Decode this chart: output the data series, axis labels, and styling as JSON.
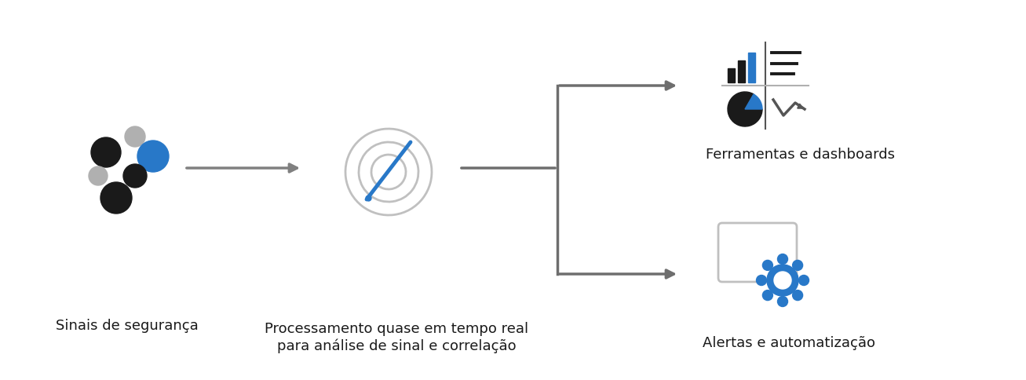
{
  "bg_color": "#ffffff",
  "arrow_color": "#808080",
  "dark_dot_color": "#1a1a1a",
  "light_dot_color": "#b0b0b0",
  "blue_color": "#2878c8",
  "target_arc_color": "#c0c0c0",
  "label1": "Sinais de segurança",
  "label2": "Processamento quase em tempo real\npara análise de sinal e correlação",
  "label3": "Ferramentas e dashboards",
  "label4": "Alertas e automatização",
  "font_size_labels": 13,
  "line_width": 2.5,
  "connector_color": "#6e6e6e"
}
